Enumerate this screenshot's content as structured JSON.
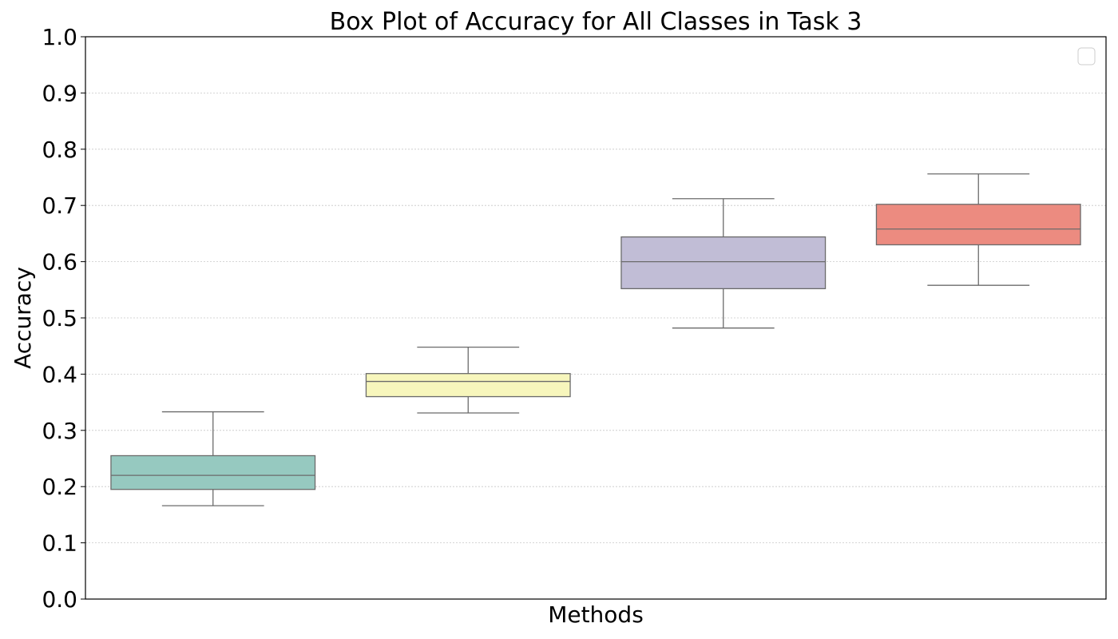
{
  "chart_data": {
    "type": "box",
    "title": "Box Plot of Accuracy for All Classes in Task 3",
    "xlabel": "Methods",
    "ylabel": "Accuracy",
    "ylim": [
      0,
      1.0
    ],
    "yticks": [
      "0.0",
      "0.1",
      "0.2",
      "0.3",
      "0.4",
      "0.5",
      "0.6",
      "0.7",
      "0.8",
      "0.9",
      "1.0"
    ],
    "grid": "horizontal-dotted",
    "legend": "top-right, empty",
    "boxes": [
      {
        "color": "#96c9c0",
        "whisker_low": 0.166,
        "q1": 0.195,
        "median": 0.22,
        "q3": 0.255,
        "whisker_high": 0.333
      },
      {
        "color": "#f7f6bc",
        "whisker_low": 0.331,
        "q1": 0.36,
        "median": 0.387,
        "q3": 0.401,
        "whisker_high": 0.448
      },
      {
        "color": "#c1bdd6",
        "whisker_low": 0.482,
        "q1": 0.552,
        "median": 0.6,
        "q3": 0.644,
        "whisker_high": 0.712
      },
      {
        "color": "#ec8b80",
        "whisker_low": 0.558,
        "q1": 0.63,
        "median": 0.658,
        "q3": 0.702,
        "whisker_high": 0.756
      }
    ]
  }
}
